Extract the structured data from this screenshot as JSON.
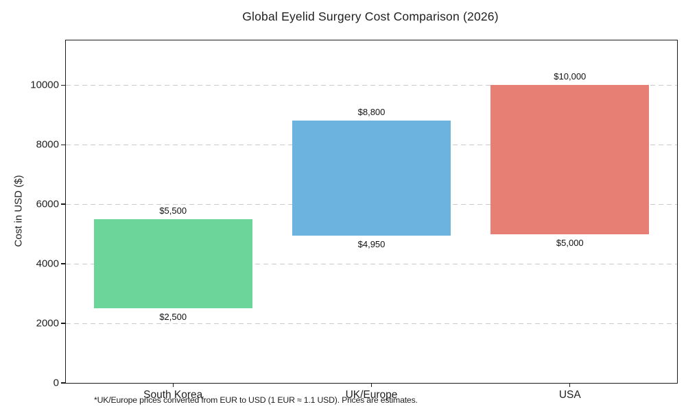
{
  "chart_data": {
    "type": "bar",
    "variant": "floating-range-bars",
    "title": "Global Eyelid Surgery Cost Comparison (2026)",
    "xlabel": "",
    "ylabel": "Cost in USD ($)",
    "categories": [
      "South Korea",
      "UK/Europe",
      "USA"
    ],
    "series": [
      {
        "name": "South Korea",
        "min": 2500,
        "max": 5500,
        "min_label": "$2,500",
        "max_label": "$5,500",
        "color": "#6cd69a"
      },
      {
        "name": "UK/Europe",
        "min": 4950,
        "max": 8800,
        "min_label": "$4,950",
        "max_label": "$8,800",
        "color": "#6cb3e0"
      },
      {
        "name": "USA",
        "min": 5000,
        "max": 10000,
        "min_label": "$5,000",
        "max_label": "$10,000",
        "color": "#e87f74"
      }
    ],
    "ylim": [
      0,
      11500
    ],
    "yticks": [
      0,
      2000,
      4000,
      6000,
      8000,
      10000
    ],
    "grid": {
      "axis": "y",
      "style": "dashed",
      "color": "#c9c9c9"
    },
    "legend": "none",
    "bar_width_fraction": 0.8,
    "footnote": "*UK/Europe prices converted from EUR to USD (1 EUR ≈ 1.1 USD). Prices are estimates."
  },
  "colors": {
    "background": "#ffffff",
    "text": "#1f1f1f",
    "axis": "#1a1a1a",
    "grid": "#c9c9c9",
    "bar_south_korea": "#6cd69a",
    "bar_uk_europe": "#6cb3e0",
    "bar_usa": "#e87f74"
  }
}
